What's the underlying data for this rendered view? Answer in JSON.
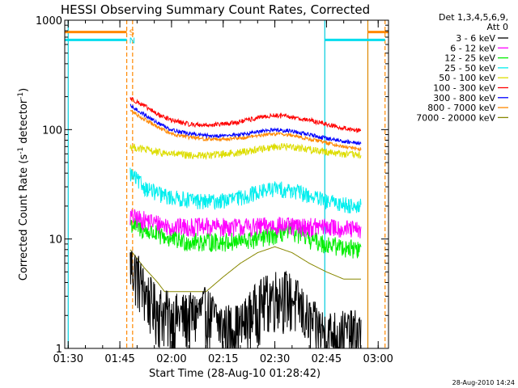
{
  "chart_data": {
    "type": "line",
    "title": "HESSI Observing Summary Count Rates, Corrected",
    "xlabel": "Start Time (28-Aug-10 01:28:42)",
    "ylabel_main": "Corrected Count Rate (s",
    "ylabel_sup1": "-1",
    "ylabel_mid": " detector",
    "ylabel_sup2": "-1",
    "ylabel_end": ")",
    "y_scale": "log",
    "ylim": [
      1,
      1000
    ],
    "xlim_minutes": [
      89,
      183
    ],
    "y_ticks": [
      {
        "value": 1,
        "label": "1"
      },
      {
        "value": 10,
        "label": "10"
      },
      {
        "value": 100,
        "label": "100"
      },
      {
        "value": 1000,
        "label": "1000"
      }
    ],
    "x_ticks": [
      {
        "minute": 90,
        "label": "01:30"
      },
      {
        "minute": 105,
        "label": "01:45"
      },
      {
        "minute": 120,
        "label": "02:00"
      },
      {
        "minute": 135,
        "label": "02:15"
      },
      {
        "minute": 150,
        "label": "02:30"
      },
      {
        "minute": 165,
        "label": "02:45"
      },
      {
        "minute": 180,
        "label": "03:00"
      }
    ],
    "legend_header": [
      "Det 1,3,4,5,6,9,",
      "Att 0"
    ],
    "legend_position": "right",
    "timestamp": "28-Aug-2010 14:24",
    "grid": false,
    "data_start_minute": 108,
    "data_end_minute": 175,
    "series": [
      {
        "name": "3 - 6 keV",
        "color": "#000000",
        "noise": 0.6,
        "points": [
          [
            108,
            6
          ],
          [
            110,
            5
          ],
          [
            112,
            3.5
          ],
          [
            115,
            2.5
          ],
          [
            120,
            2
          ],
          [
            125,
            2
          ],
          [
            130,
            2.3
          ],
          [
            135,
            1.6
          ],
          [
            140,
            1.6
          ],
          [
            145,
            2.6
          ],
          [
            150,
            3.3
          ],
          [
            153,
            3.3
          ],
          [
            157,
            2.6
          ],
          [
            160,
            1.8
          ],
          [
            165,
            1.4
          ],
          [
            170,
            1.4
          ],
          [
            175,
            1.4
          ]
        ]
      },
      {
        "name": "6 - 12 keV",
        "color": "#ff00ff",
        "noise": 0.2,
        "points": [
          [
            108,
            16
          ],
          [
            112,
            15
          ],
          [
            116,
            14
          ],
          [
            120,
            13
          ],
          [
            125,
            13
          ],
          [
            130,
            13
          ],
          [
            135,
            13
          ],
          [
            140,
            13
          ],
          [
            145,
            13
          ],
          [
            150,
            13.5
          ],
          [
            155,
            13
          ],
          [
            160,
            13
          ],
          [
            165,
            13
          ],
          [
            170,
            12.5
          ],
          [
            175,
            12
          ]
        ]
      },
      {
        "name": "12 - 25 keV",
        "color": "#00ee00",
        "noise": 0.2,
        "points": [
          [
            108,
            14
          ],
          [
            112,
            12
          ],
          [
            116,
            11
          ],
          [
            120,
            10
          ],
          [
            125,
            9.5
          ],
          [
            130,
            9.5
          ],
          [
            135,
            9.5
          ],
          [
            140,
            9.5
          ],
          [
            145,
            10
          ],
          [
            150,
            11
          ],
          [
            155,
            12
          ],
          [
            160,
            10
          ],
          [
            165,
            9
          ],
          [
            170,
            8.5
          ],
          [
            175,
            8
          ]
        ]
      },
      {
        "name": "25 - 50 keV",
        "color": "#00eeee",
        "noise": 0.17,
        "points": [
          [
            108,
            40
          ],
          [
            112,
            30
          ],
          [
            116,
            26
          ],
          [
            120,
            24
          ],
          [
            125,
            23
          ],
          [
            130,
            22
          ],
          [
            135,
            22.5
          ],
          [
            140,
            24
          ],
          [
            145,
            27
          ],
          [
            150,
            29
          ],
          [
            155,
            28
          ],
          [
            160,
            25
          ],
          [
            165,
            22
          ],
          [
            170,
            21
          ],
          [
            175,
            20
          ]
        ]
      },
      {
        "name": "50 - 100 keV",
        "color": "#dddd00",
        "noise": 0.08,
        "points": [
          [
            108,
            70
          ],
          [
            112,
            66
          ],
          [
            116,
            62
          ],
          [
            120,
            60
          ],
          [
            125,
            58
          ],
          [
            130,
            58
          ],
          [
            135,
            60
          ],
          [
            140,
            62
          ],
          [
            145,
            66
          ],
          [
            150,
            70
          ],
          [
            155,
            70
          ],
          [
            160,
            66
          ],
          [
            165,
            63
          ],
          [
            170,
            60
          ],
          [
            175,
            58
          ]
        ]
      },
      {
        "name": "100 - 300 keV",
        "color": "#ff0000",
        "noise": 0.05,
        "points": [
          [
            108,
            195
          ],
          [
            112,
            165
          ],
          [
            116,
            138
          ],
          [
            120,
            122
          ],
          [
            125,
            112
          ],
          [
            130,
            110
          ],
          [
            135,
            112
          ],
          [
            140,
            118
          ],
          [
            145,
            128
          ],
          [
            150,
            135
          ],
          [
            155,
            130
          ],
          [
            160,
            122
          ],
          [
            165,
            112
          ],
          [
            170,
            103
          ],
          [
            175,
            98
          ]
        ]
      },
      {
        "name": "300 - 800 keV",
        "color": "#0000ff",
        "noise": 0.04,
        "points": [
          [
            108,
            165
          ],
          [
            112,
            138
          ],
          [
            116,
            115
          ],
          [
            120,
            100
          ],
          [
            125,
            92
          ],
          [
            130,
            88
          ],
          [
            135,
            88
          ],
          [
            140,
            90
          ],
          [
            145,
            95
          ],
          [
            150,
            100
          ],
          [
            155,
            97
          ],
          [
            160,
            90
          ],
          [
            165,
            83
          ],
          [
            170,
            78
          ],
          [
            175,
            75
          ]
        ]
      },
      {
        "name": "800 - 7000 keV",
        "color": "#ff8800",
        "noise": 0.04,
        "points": [
          [
            108,
            150
          ],
          [
            112,
            125
          ],
          [
            116,
            105
          ],
          [
            120,
            92
          ],
          [
            125,
            85
          ],
          [
            130,
            82
          ],
          [
            135,
            82
          ],
          [
            140,
            84
          ],
          [
            145,
            88
          ],
          [
            150,
            92
          ],
          [
            155,
            89
          ],
          [
            160,
            82
          ],
          [
            165,
            76
          ],
          [
            170,
            70
          ],
          [
            175,
            66
          ]
        ]
      },
      {
        "name": "7000 - 20000 keV",
        "color": "#888800",
        "noise": 0.1,
        "step": true,
        "points": [
          [
            108,
            8
          ],
          [
            112,
            5.5
          ],
          [
            116,
            4
          ],
          [
            118,
            3.3
          ],
          [
            125,
            3.3
          ],
          [
            130,
            3.3
          ],
          [
            135,
            4.5
          ],
          [
            140,
            6
          ],
          [
            145,
            7.5
          ],
          [
            150,
            8.5
          ],
          [
            155,
            7.5
          ],
          [
            160,
            6
          ],
          [
            165,
            5
          ],
          [
            170,
            4.3
          ],
          [
            175,
            4.3
          ]
        ]
      }
    ],
    "markers": [
      {
        "kind": "night",
        "color": "#00ccdd",
        "dashed": false,
        "minute": 90
      },
      {
        "kind": "night",
        "color": "#00ccdd",
        "dashed": false,
        "minute": 164.5
      },
      {
        "kind": "saa",
        "color": "#ff8800",
        "dashed": true,
        "minute": 107
      },
      {
        "kind": "saa",
        "color": "#ff8800",
        "dashed": true,
        "minute": 108.7
      },
      {
        "kind": "saa",
        "color": "#dd8800",
        "dashed": false,
        "minute": 177
      },
      {
        "kind": "saa",
        "color": "#ff8800",
        "dashed": true,
        "minute": 182
      }
    ],
    "flag_bars": [
      {
        "label": "S",
        "color": "#ff8800",
        "y_value": 780,
        "x_from_minute": 89,
        "x_to_minute": 107,
        "x2_from_minute": 177,
        "x2_to_minute": 183
      },
      {
        "label": "N",
        "color": "#00ddee",
        "y_value": 660,
        "x_from_minute": 89,
        "x_to_minute": 107,
        "x2_from_minute": 164.5,
        "x2_to_minute": 182
      }
    ]
  }
}
